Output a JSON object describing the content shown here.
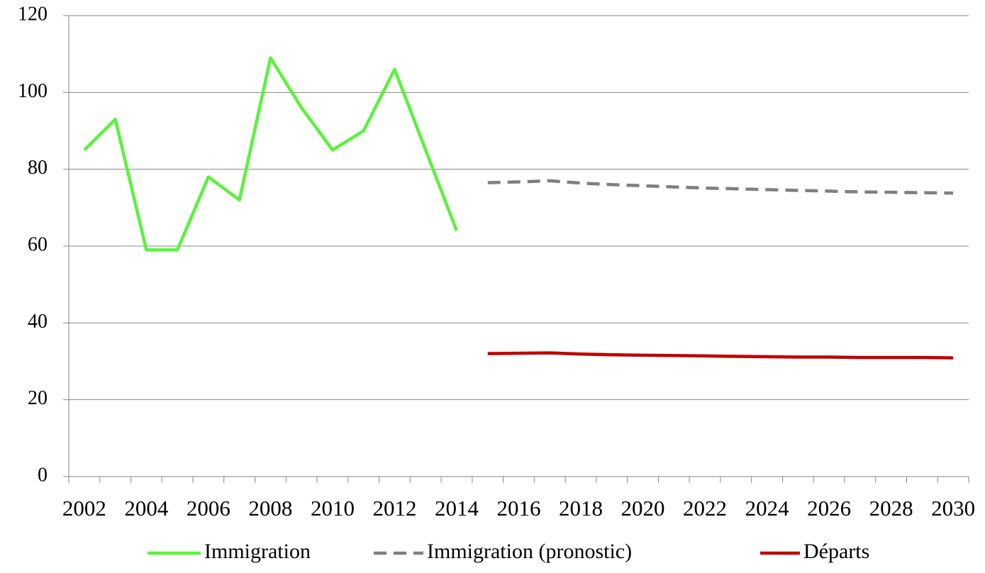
{
  "chart_data": {
    "type": "line",
    "categories": [
      "2002",
      null,
      "2004",
      null,
      "2006",
      null,
      "2008",
      null,
      "2010",
      null,
      "2012",
      null,
      "2014",
      null,
      "2016",
      null,
      "2018",
      null,
      "2020",
      null,
      "2022",
      null,
      "2024",
      null,
      "2026",
      null,
      "2028",
      null,
      "2030"
    ],
    "series": [
      {
        "name": "Immigration",
        "color": "#5af23c",
        "line_style": "solid",
        "values": [
          85,
          93,
          59,
          59,
          78,
          72,
          109,
          96,
          85,
          90,
          106,
          85,
          64,
          null,
          null,
          null,
          null,
          null,
          null,
          null,
          null,
          null,
          null,
          null,
          null,
          null,
          null,
          null,
          null
        ]
      },
      {
        "name": "Immigration (pronostic)",
        "color": "#7f7f7f",
        "line_style": "dashed",
        "values": [
          null,
          null,
          null,
          null,
          null,
          null,
          null,
          null,
          null,
          null,
          null,
          null,
          null,
          76.5,
          76.7,
          77,
          76.4,
          76,
          75.7,
          75.4,
          75.1,
          74.9,
          74.7,
          74.5,
          74.3,
          74.1,
          74,
          73.9,
          73.8
        ]
      },
      {
        "name": "Départs",
        "color": "#c00000",
        "line_style": "solid",
        "values": [
          null,
          null,
          null,
          null,
          null,
          null,
          null,
          null,
          null,
          null,
          null,
          null,
          null,
          32,
          32.1,
          32.2,
          31.9,
          31.7,
          31.6,
          31.5,
          31.4,
          31.3,
          31.2,
          31.1,
          31.1,
          31,
          31,
          31,
          30.9
        ]
      }
    ],
    "ylim": [
      0,
      120
    ],
    "yticks": [
      0,
      20,
      40,
      60,
      80,
      100,
      120
    ],
    "grid": true,
    "legend": "bottom"
  }
}
